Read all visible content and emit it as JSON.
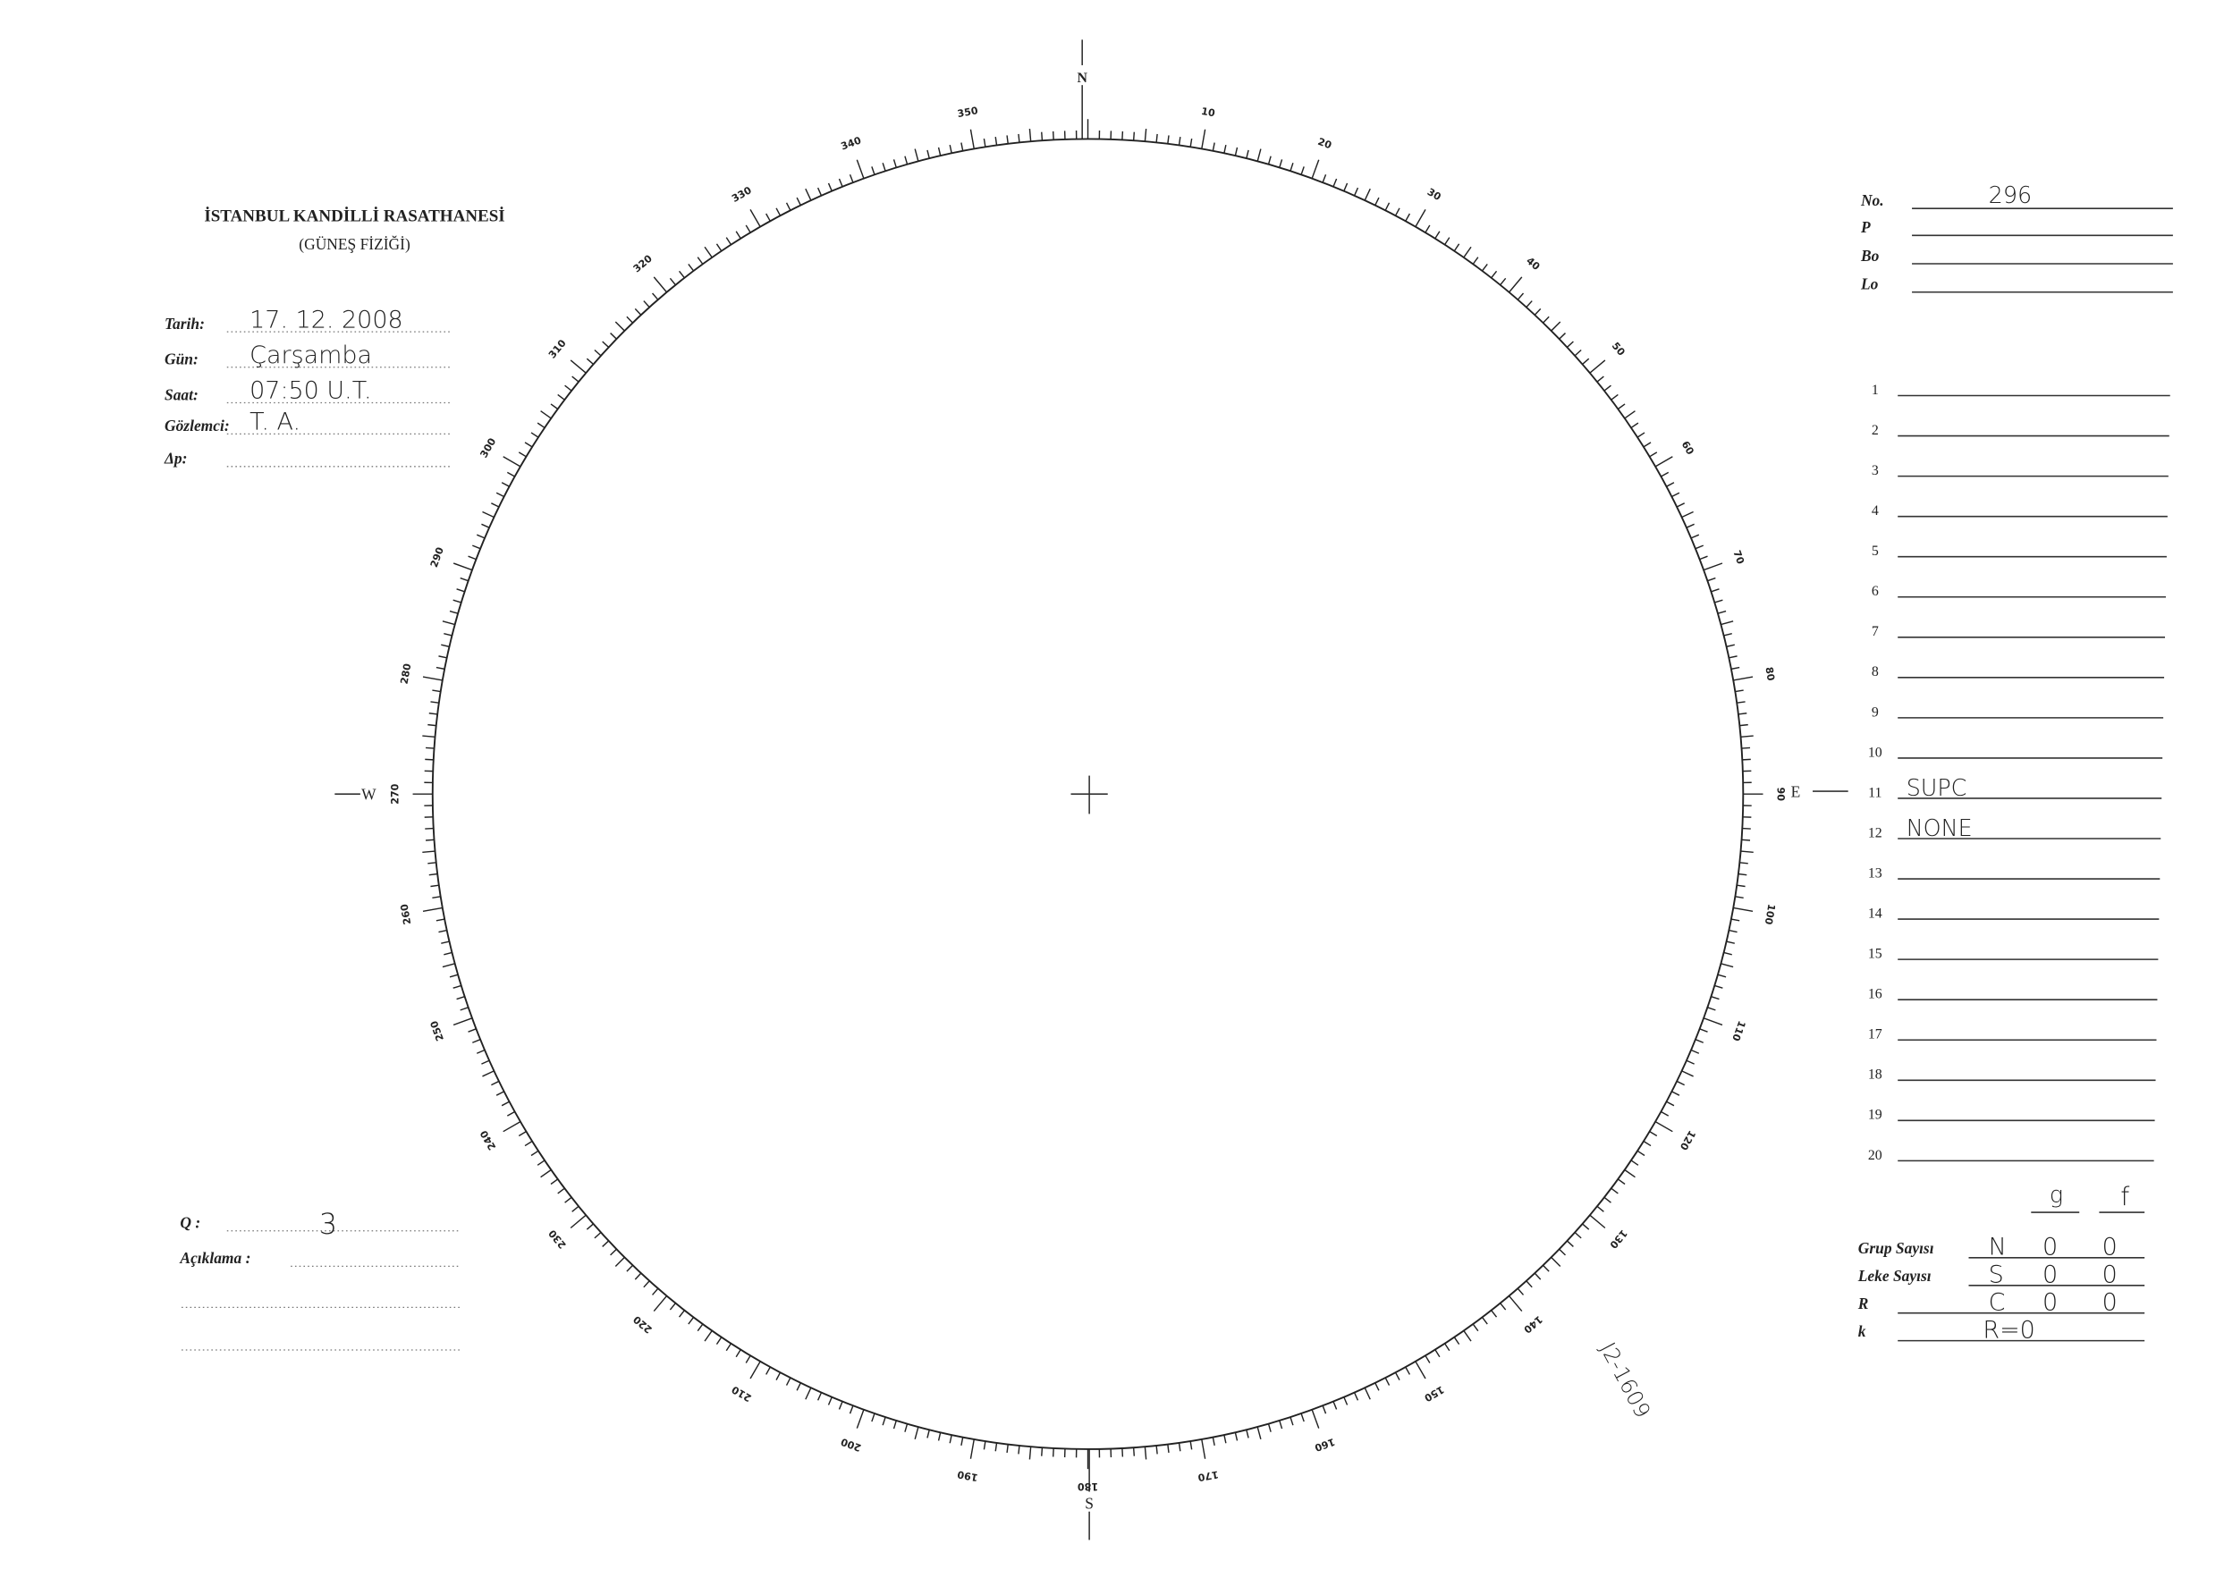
{
  "header": {
    "institution": "İSTANBUL KANDİLLİ RASATHANESİ",
    "department": "(GÜNEŞ FİZİĞİ)"
  },
  "fields": [
    {
      "label": "Tarih:",
      "value": "17. 12. 2008"
    },
    {
      "label": "Gün:",
      "value": "Çarşamba"
    },
    {
      "label": "Saat:",
      "value": "07:50 U.T."
    },
    {
      "label": "Gözlemci:",
      "value": "T. A."
    },
    {
      "label": "Δp:"
    }
  ],
  "remarks": {
    "q_label": "Q :",
    "q_value": "3",
    "comment_label": "Açıklama :"
  },
  "dial": {
    "labels": [
      10,
      20,
      30,
      40,
      50,
      60,
      70,
      80,
      90,
      100,
      110,
      120,
      130,
      140,
      150,
      160,
      170,
      180,
      190,
      200,
      210,
      220,
      230,
      240,
      250,
      260,
      270,
      280,
      290,
      300,
      310,
      320,
      330,
      340,
      350
    ],
    "north": "N",
    "east": "E",
    "south": "S",
    "west": "W"
  },
  "right_panel": {
    "header_fields": [
      {
        "label": "No.",
        "value": "296"
      },
      {
        "label": "P"
      },
      {
        "label": "Bo"
      },
      {
        "label": "Lo"
      }
    ],
    "rows": [
      {
        "n": 1
      },
      {
        "n": 2
      },
      {
        "n": 3
      },
      {
        "n": 4
      },
      {
        "n": 5
      },
      {
        "n": 6
      },
      {
        "n": 7
      },
      {
        "n": 8
      },
      {
        "n": 9
      },
      {
        "n": 10
      },
      {
        "n": 11,
        "text": "SUPC"
      },
      {
        "n": 12,
        "text": "NONE"
      },
      {
        "n": 13
      },
      {
        "n": 14
      },
      {
        "n": 15
      },
      {
        "n": 16
      },
      {
        "n": 17
      },
      {
        "n": 18
      },
      {
        "n": 19
      },
      {
        "n": 20
      }
    ]
  },
  "counts": {
    "columns": [
      "g",
      "f"
    ],
    "rows": [
      {
        "label": "Grup Sayısı",
        "cells": [
          "N",
          "0",
          "0"
        ]
      },
      {
        "label": "Leke Sayısı",
        "cells": [
          "S",
          "0",
          "0"
        ]
      },
      {
        "label": "R",
        "cells": [
          "C",
          "0",
          "0"
        ]
      },
      {
        "label": "k",
        "cells": [
          "R=0"
        ]
      }
    ]
  },
  "stamp": "J2-1609"
}
